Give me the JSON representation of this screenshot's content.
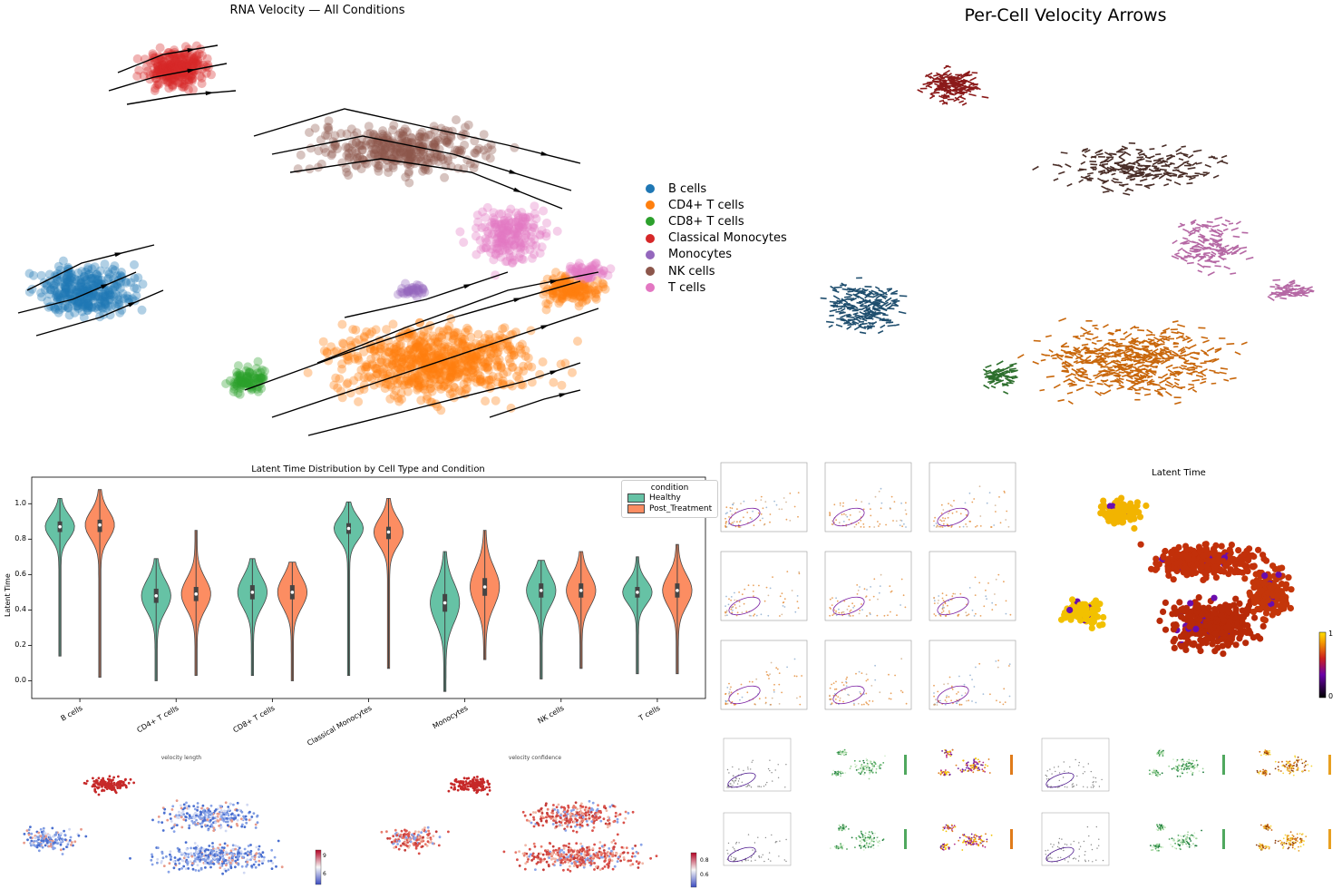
{
  "colors": {
    "B cells": "#1f77b4",
    "CD4+ T cells": "#ff7f0e",
    "CD8+ T cells": "#2ca02c",
    "Classical Monocytes": "#d62728",
    "Monocytes": "#9467bd",
    "NK cells": "#8c564b",
    "T cells": "#e377c2",
    "healthy": "#66c2a5",
    "post_treatment": "#fc8d62"
  },
  "stream_panel": {
    "title": "RNA Velocity — All Conditions",
    "legend": [
      "B cells",
      "CD4+ T cells",
      "CD8+ T cells",
      "Classical Monocytes",
      "Monocytes",
      "NK cells",
      "T cells"
    ]
  },
  "arrow_panel": {
    "title": "Per-Cell Velocity Arrows"
  },
  "chart_data": [
    {
      "type": "violin",
      "title": "Latent Time Distribution by Cell Type and Condition",
      "xlabel": "",
      "ylabel": "Latent Time",
      "ylim": [
        -0.1,
        1.15
      ],
      "yticks": [
        "0.0",
        "0.2",
        "0.4",
        "0.6",
        "0.8",
        "1.0"
      ],
      "legend_title": "condition",
      "legend_position": "top-right",
      "categories": [
        "B cells",
        "CD4+ T cells",
        "CD8+ T cells",
        "Classical Monocytes",
        "Monocytes",
        "NK cells",
        "T cells"
      ],
      "series": [
        {
          "name": "Healthy",
          "median": [
            0.87,
            0.48,
            0.5,
            0.86,
            0.44,
            0.51,
            0.5
          ],
          "q1": [
            0.84,
            0.44,
            0.46,
            0.83,
            0.39,
            0.47,
            0.47
          ],
          "q3": [
            0.9,
            0.52,
            0.54,
            0.89,
            0.49,
            0.55,
            0.53
          ],
          "min": [
            0.14,
            0.0,
            0.03,
            0.03,
            -0.06,
            0.01,
            0.04
          ],
          "max": [
            1.03,
            0.69,
            0.69,
            1.01,
            0.73,
            0.68,
            0.7
          ]
        },
        {
          "name": "Post_Treatment",
          "median": [
            0.88,
            0.49,
            0.5,
            0.84,
            0.53,
            0.51,
            0.51
          ],
          "q1": [
            0.84,
            0.45,
            0.46,
            0.8,
            0.48,
            0.47,
            0.47
          ],
          "q3": [
            0.91,
            0.53,
            0.54,
            0.87,
            0.58,
            0.55,
            0.55
          ],
          "min": [
            0.02,
            0.03,
            0.0,
            0.07,
            0.12,
            0.07,
            0.04
          ],
          "max": [
            1.08,
            0.85,
            0.67,
            1.03,
            0.85,
            0.73,
            0.77
          ]
        }
      ]
    },
    {
      "type": "scatter",
      "title": "Latent Time",
      "colorbar": {
        "min": "0",
        "max": "1"
      }
    },
    {
      "type": "scatter",
      "title": "velocity length",
      "colorbar": {
        "ticks": [
          "9",
          "6"
        ]
      }
    },
    {
      "type": "scatter",
      "title": "velocity confidence",
      "colorbar": {
        "ticks": [
          "0.8",
          "0.6"
        ]
      }
    }
  ]
}
